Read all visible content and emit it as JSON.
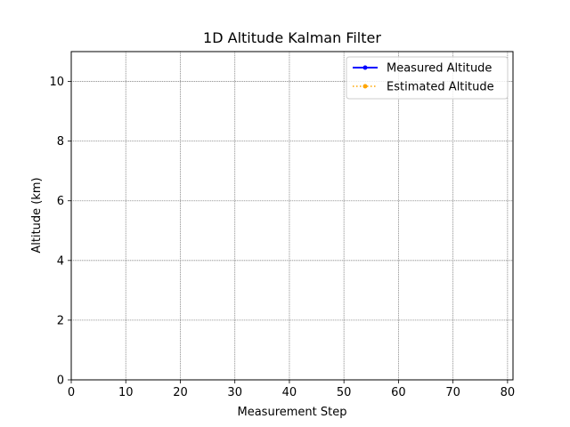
{
  "chart_data": {
    "type": "line",
    "title": "1D Altitude Kalman Filter",
    "xlabel": "Measurement Step",
    "ylabel": "Altitude (km)",
    "xlim": [
      0,
      81
    ],
    "ylim": [
      0,
      11
    ],
    "xticks": [
      0,
      10,
      20,
      30,
      40,
      50,
      60,
      70,
      80
    ],
    "yticks": [
      0,
      2,
      4,
      6,
      8,
      10
    ],
    "grid": true,
    "legend_position": "top-right",
    "series": [
      {
        "name": "Measured Altitude",
        "color": "#0000ff",
        "style": "solid",
        "marker": "dot",
        "values": []
      },
      {
        "name": "Estimated Altitude",
        "color": "#ffa500",
        "style": "dotted",
        "marker": "dot",
        "values": []
      }
    ]
  }
}
